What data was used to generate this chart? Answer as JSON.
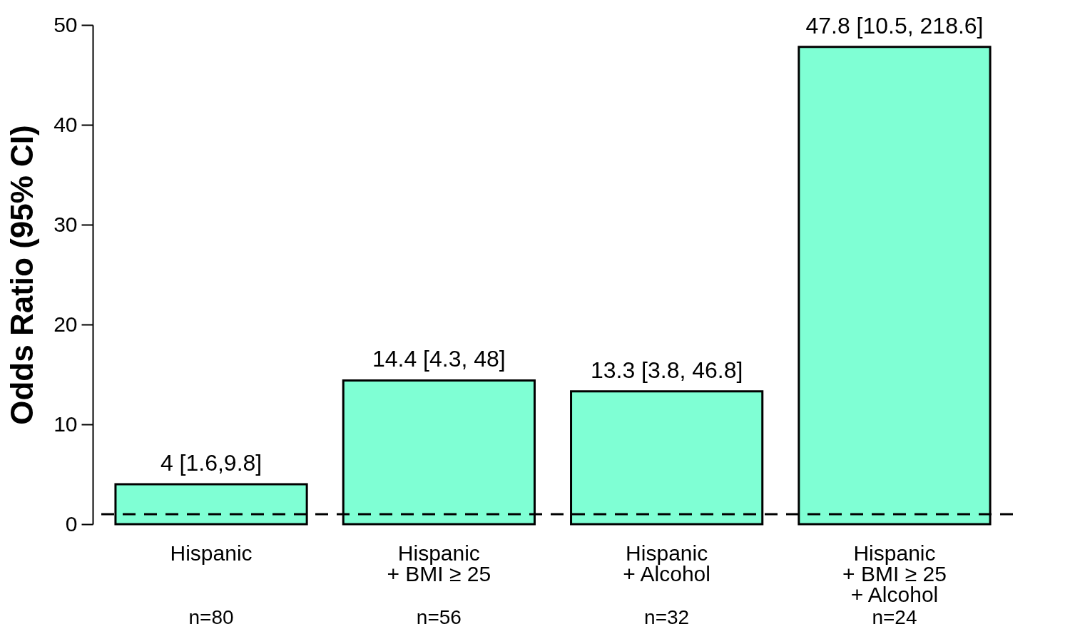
{
  "chart_data": {
    "type": "bar",
    "ylabel": "Odds Ratio (95% CI)",
    "categories": [
      "Hispanic",
      "Hispanic\n+ BMI ≥ 25",
      "Hispanic\n+ Alcohol",
      "Hispanic\n+ BMI ≥ 25\n+ Alcohol"
    ],
    "values": [
      4,
      14.4,
      13.3,
      47.8
    ],
    "value_labels": [
      "4 [1.6,9.8]",
      "14.4 [4.3, 48]",
      "13.3 [3.8, 46.8]",
      "47.8 [10.5, 218.6]"
    ],
    "color": "#7fffd4",
    "ylim": [
      0,
      50
    ],
    "yticks": [
      0,
      10,
      20,
      30,
      40,
      50
    ],
    "grid": false,
    "ref_lines": [
      {
        "axis": "y",
        "value": 1,
        "line_style": "dashed",
        "color": "#000000"
      }
    ],
    "annotations": [
      "n=80",
      "n=56",
      "n=32",
      "n=24"
    ]
  }
}
